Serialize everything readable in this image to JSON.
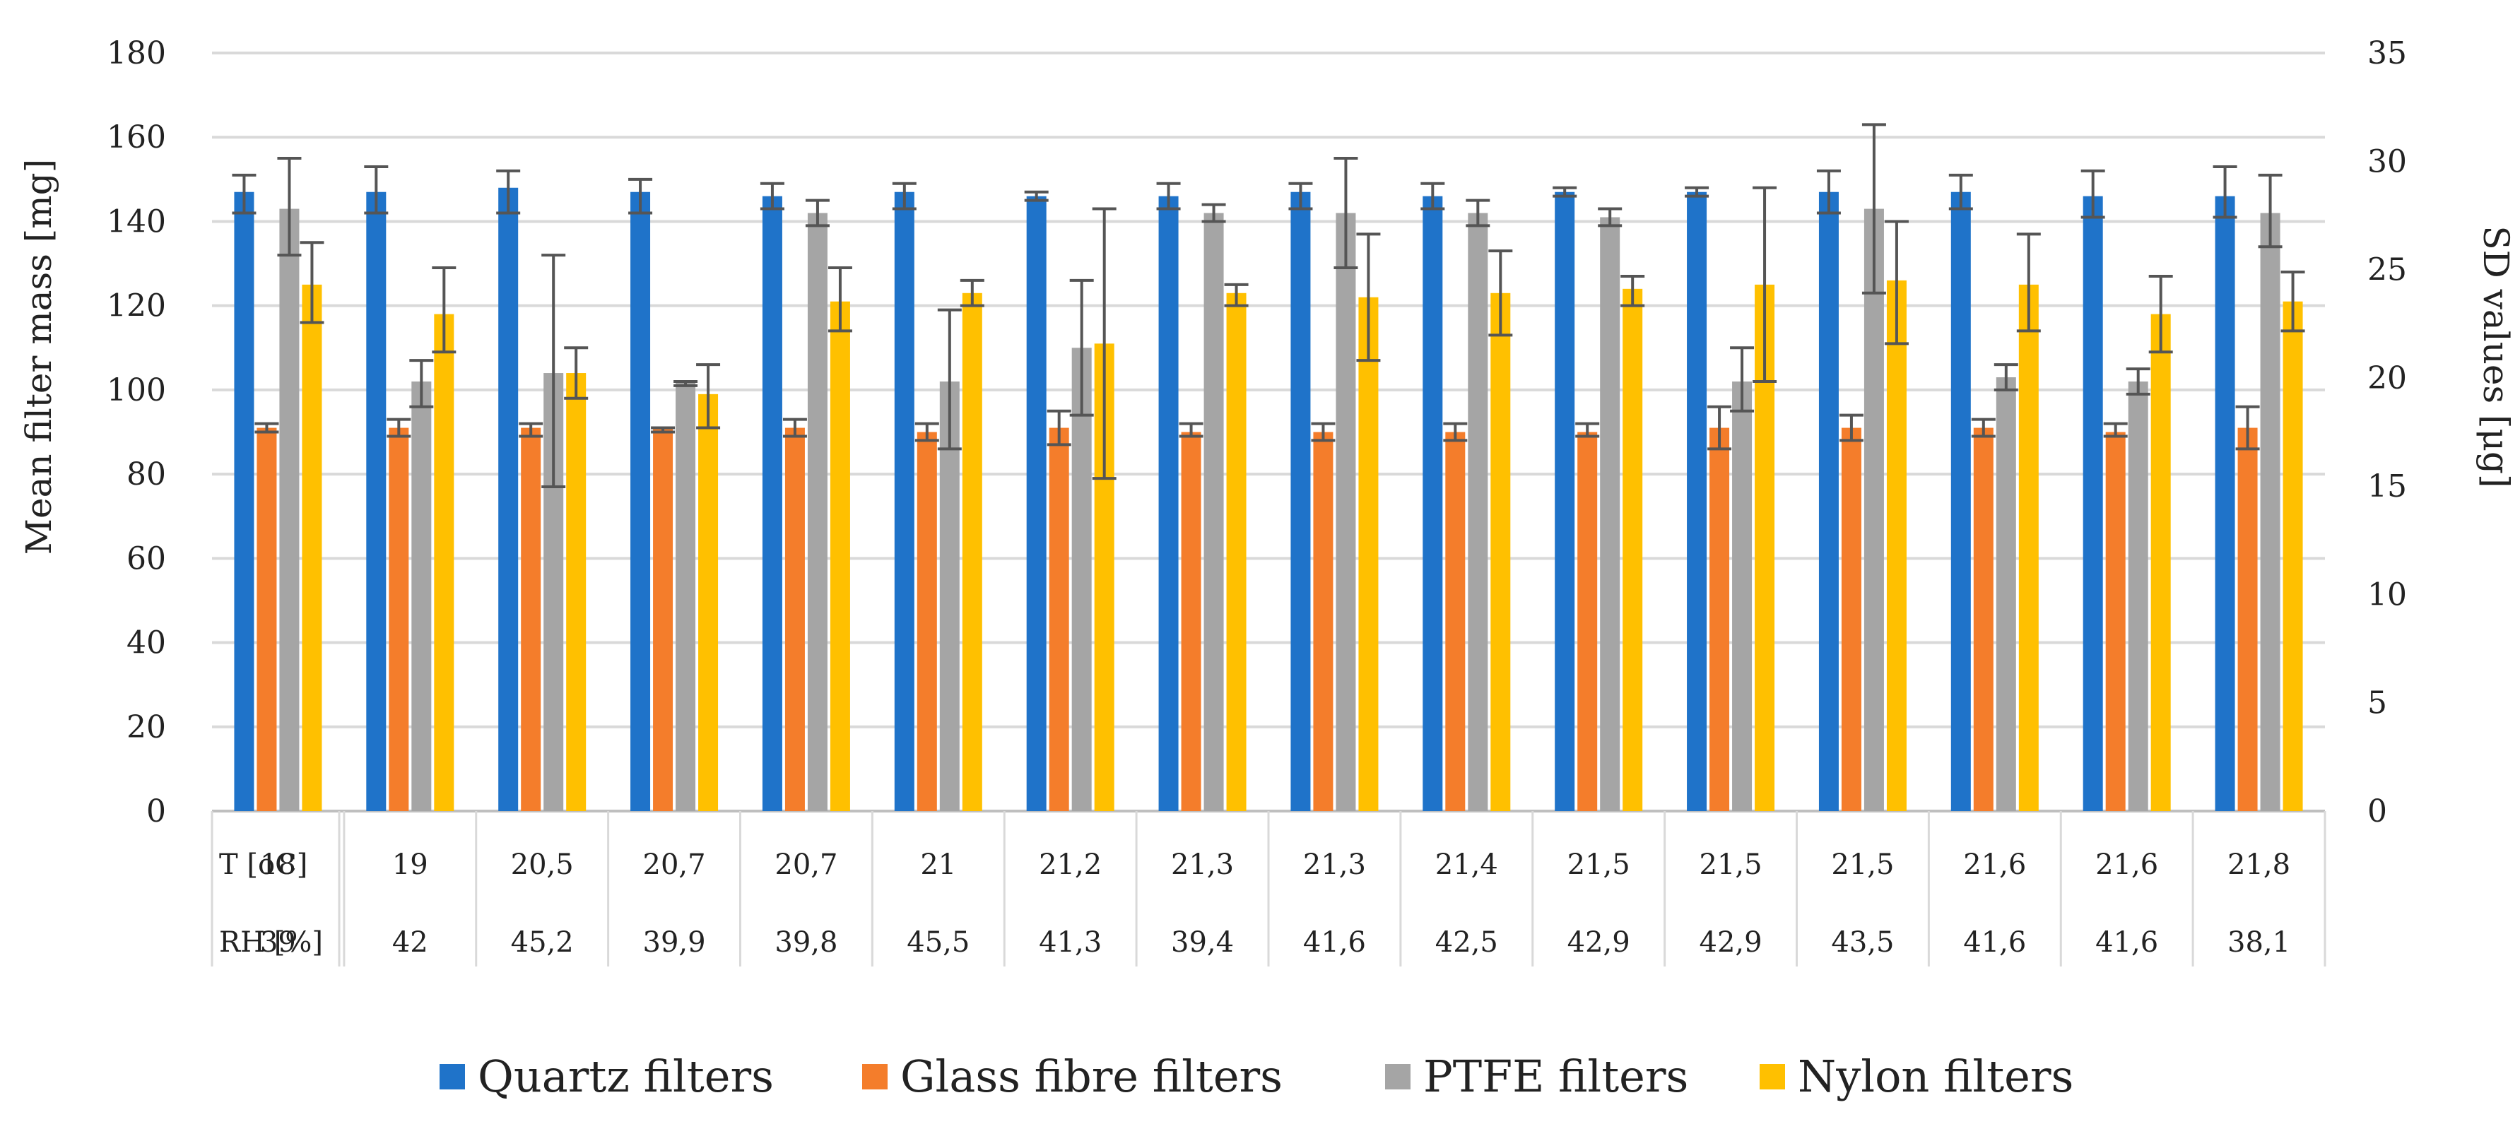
{
  "chart_data": {
    "type": "bar",
    "xlabel": "",
    "ylabel": "Mean filter mass [mg]",
    "y2label": "SD values [μg]",
    "ylim": [
      0,
      180
    ],
    "y2lim": [
      0,
      35
    ],
    "yticks": [
      "0",
      "20",
      "40",
      "60",
      "80",
      "100",
      "120",
      "140",
      "160",
      "180"
    ],
    "y2ticks": [
      "0",
      "5",
      "10",
      "15",
      "20",
      "25",
      "30",
      "35"
    ],
    "grid": true,
    "legend_position": "bottom",
    "row_labels": [
      "T [oC]",
      "RH [%]"
    ],
    "temperature": [
      "18",
      "19",
      "20,5",
      "20,7",
      "20,7",
      "21",
      "21,2",
      "21,3",
      "21,3",
      "21,4",
      "21,5",
      "21,5",
      "21,5",
      "21,6",
      "21,6",
      "21,8"
    ],
    "humidity": [
      "39",
      "42",
      "45,2",
      "39,9",
      "39,8",
      "45,5",
      "41,3",
      "39,4",
      "41,6",
      "42,5",
      "42,9",
      "42,9",
      "43,5",
      "41,6",
      "41,6",
      "38,1"
    ],
    "series": [
      {
        "name": "Quartz filters",
        "color": "#1f73c9",
        "values": [
          147,
          147,
          148,
          147,
          146,
          147,
          146,
          146,
          147,
          146,
          147,
          147,
          147,
          147,
          146,
          146
        ],
        "err_low": [
          142,
          142,
          142,
          142,
          143,
          143,
          145,
          143,
          143,
          143,
          146,
          146,
          142,
          143,
          141,
          141
        ],
        "err_high": [
          151,
          153,
          152,
          150,
          149,
          149,
          147,
          149,
          149,
          149,
          148,
          148,
          152,
          151,
          152,
          153
        ]
      },
      {
        "name": "Glass fibre filters",
        "color": "#f47d2b",
        "values": [
          91,
          91,
          91,
          91,
          91,
          90,
          91,
          90,
          90,
          90,
          90,
          91,
          91,
          91,
          90,
          91
        ],
        "err_low": [
          90,
          89,
          89,
          90,
          89,
          88,
          87,
          89,
          88,
          88,
          89,
          86,
          88,
          89,
          89,
          86
        ],
        "err_high": [
          92,
          93,
          92,
          91,
          93,
          92,
          95,
          92,
          92,
          92,
          92,
          96,
          94,
          93,
          92,
          96
        ]
      },
      {
        "name": "PTFE filters",
        "color": "#a5a5a5",
        "values": [
          143,
          102,
          104,
          102,
          142,
          102,
          110,
          142,
          142,
          142,
          141,
          102,
          143,
          103,
          102,
          142
        ],
        "err_low": [
          132,
          96,
          77,
          101,
          139,
          86,
          94,
          140,
          129,
          139,
          139,
          95,
          123,
          100,
          99,
          134
        ],
        "err_high": [
          155,
          107,
          132,
          102,
          145,
          119,
          126,
          144,
          155,
          145,
          143,
          110,
          163,
          106,
          105,
          151
        ]
      },
      {
        "name": "Nylon filters",
        "color": "#ffc000",
        "values": [
          125,
          118,
          104,
          99,
          121,
          123,
          111,
          123,
          122,
          123,
          124,
          125,
          126,
          125,
          118,
          121
        ],
        "err_low": [
          116,
          109,
          98,
          91,
          114,
          120,
          79,
          120,
          107,
          113,
          120,
          102,
          111,
          114,
          109,
          114
        ],
        "err_high": [
          135,
          129,
          110,
          106,
          129,
          126,
          143,
          125,
          137,
          133,
          127,
          148,
          140,
          137,
          127,
          128
        ]
      }
    ]
  }
}
